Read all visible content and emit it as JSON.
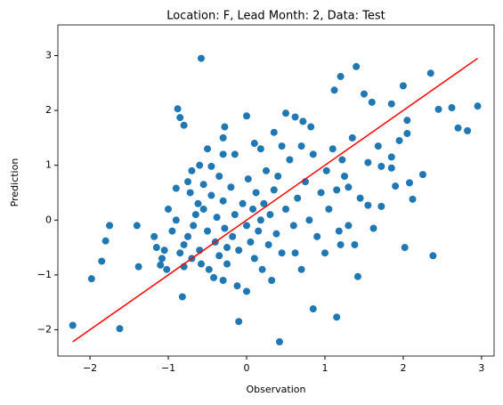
{
  "chart_data": {
    "type": "scatter",
    "title": "Location: F, Lead Month: 2, Data: Test",
    "x_label": "Observation",
    "y_label": "Prediction",
    "xlim": [
      -2.41,
      3.16
    ],
    "ylim": [
      -2.48,
      3.56
    ],
    "xticks": [
      {
        "value": -2,
        "label": "−2"
      },
      {
        "value": -1,
        "label": "−1"
      },
      0,
      1,
      2,
      3
    ],
    "yticks": [
      {
        "value": -2,
        "label": "−2"
      },
      {
        "value": -1,
        "label": "−1"
      },
      0,
      1,
      2,
      3
    ],
    "series": [
      {
        "kind": "scatter",
        "color": "#1f77b4",
        "x": [
          -2.22,
          -1.98,
          -1.85,
          -1.8,
          -1.75,
          -1.62,
          -1.4,
          -1.38,
          -1.18,
          -1.15,
          -1.1,
          -1.08,
          -1.05,
          -0.9,
          -0.88,
          -0.85,
          -0.8,
          -0.82,
          -0.58,
          -0.5,
          -0.3,
          -0.28,
          -0.1,
          0.0,
          0.42,
          0.85,
          1.15,
          1.42,
          1.2,
          1.4,
          1.5,
          1.12,
          1.6,
          1.85,
          2.0,
          2.35,
          2.45,
          2.62,
          2.7,
          2.82,
          2.95,
          2.38,
          2.02,
          2.25,
          2.12,
          2.08,
          1.85,
          1.85,
          1.9,
          1.72,
          1.68,
          1.55,
          2.05,
          2.05,
          1.95,
          1.3,
          1.45,
          1.55,
          1.62,
          1.72,
          1.38,
          1.2,
          0.5,
          0.62,
          0.72,
          0.82,
          0.35,
          0.18,
          0.1,
          -0.3,
          -0.15,
          -0.45,
          -0.35,
          -0.6,
          -0.7,
          -0.75,
          -0.62,
          -0.85,
          -0.8,
          -0.75,
          -0.7,
          -0.68,
          -0.65,
          -0.6,
          -0.58,
          -0.55,
          -0.5,
          -0.48,
          -0.45,
          -0.42,
          -0.4,
          -0.38,
          -0.35,
          -0.3,
          -0.28,
          -0.25,
          -0.2,
          -0.18,
          -0.15,
          -0.12,
          -0.1,
          -0.05,
          0.0,
          0.02,
          0.05,
          0.08,
          0.1,
          0.12,
          0.15,
          0.18,
          0.2,
          0.22,
          0.25,
          0.28,
          0.3,
          0.32,
          0.35,
          0.38,
          0.4,
          0.45,
          0.5,
          0.55,
          0.6,
          0.62,
          0.65,
          0.7,
          0.75,
          0.8,
          0.85,
          0.9,
          0.95,
          1.0,
          1.02,
          1.05,
          1.1,
          1.15,
          1.18,
          1.22,
          1.25,
          1.3,
          1.35,
          -0.9,
          -0.95,
          -1.0,
          -0.72,
          -0.55,
          -0.3,
          0.0,
          -0.25,
          0.45,
          0.7,
          -0.8,
          -1.02
        ],
        "values": [
          -1.92,
          -1.07,
          -0.75,
          -0.38,
          -0.1,
          -1.98,
          -0.1,
          -0.85,
          -0.3,
          -0.5,
          -0.82,
          -0.7,
          -0.55,
          0.58,
          2.03,
          1.87,
          1.73,
          -1.4,
          2.95,
          1.3,
          1.5,
          1.7,
          -1.85,
          1.9,
          -2.22,
          -1.62,
          -1.77,
          -1.03,
          2.62,
          2.8,
          2.3,
          2.37,
          2.15,
          2.12,
          2.45,
          2.68,
          2.02,
          2.05,
          1.68,
          1.63,
          2.08,
          -0.65,
          -0.5,
          0.83,
          0.38,
          0.68,
          1.15,
          0.95,
          0.62,
          0.98,
          1.35,
          1.05,
          1.82,
          1.58,
          1.45,
          0.6,
          0.4,
          0.27,
          -0.15,
          0.25,
          -0.45,
          -0.45,
          1.95,
          1.88,
          1.8,
          1.7,
          1.6,
          1.3,
          1.4,
          1.2,
          1.2,
          0.98,
          0.8,
          1.0,
          0.9,
          0.7,
          0.3,
          -0.6,
          -0.45,
          -0.3,
          -0.7,
          -0.1,
          0.1,
          -0.55,
          -0.8,
          0.2,
          -0.2,
          -0.9,
          0.45,
          -1.05,
          -0.4,
          0.05,
          -0.65,
          0.35,
          -0.15,
          -0.8,
          0.6,
          -0.3,
          0.1,
          -1.2,
          -0.55,
          0.3,
          -0.1,
          0.75,
          -0.4,
          0.2,
          -0.7,
          0.5,
          -0.2,
          0.0,
          -0.9,
          0.3,
          0.9,
          -0.45,
          0.1,
          -1.1,
          0.55,
          -0.25,
          0.8,
          -0.6,
          0.2,
          1.1,
          -0.1,
          -0.6,
          0.4,
          -0.9,
          0.7,
          0.0,
          1.2,
          -0.3,
          0.5,
          -0.6,
          0.9,
          0.2,
          1.3,
          0.55,
          -0.2,
          1.1,
          0.8,
          -0.1,
          1.5,
          0.0,
          -0.2,
          0.2,
          0.5,
          0.65,
          -1.1,
          -1.3,
          -0.5,
          1.35,
          1.35,
          -0.85,
          -0.9
        ]
      },
      {
        "kind": "line",
        "color": "#ff0000",
        "x": [
          -2.22,
          2.95
        ],
        "values": [
          -2.22,
          2.95
        ]
      }
    ]
  }
}
